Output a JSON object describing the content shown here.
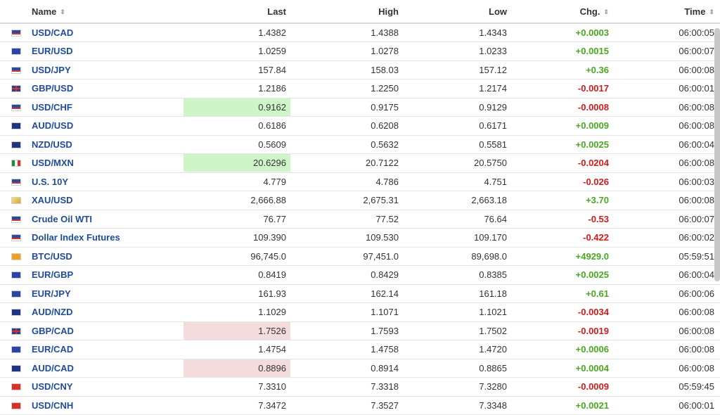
{
  "headers": {
    "name": "Name",
    "last": "Last",
    "high": "High",
    "low": "Low",
    "chg": "Chg.",
    "time": "Time"
  },
  "rows": [
    {
      "name": "USD/CAD",
      "last": "1.4382",
      "high": "1.4388",
      "low": "1.4343",
      "chg": "+0.0003",
      "time": "06:00:05",
      "flag": "us-flag-icon",
      "dir": "pos",
      "hl": ""
    },
    {
      "name": "EUR/USD",
      "last": "1.0259",
      "high": "1.0278",
      "low": "1.0233",
      "chg": "+0.0015",
      "time": "06:00:07",
      "flag": "eu-flag-icon",
      "dir": "pos",
      "hl": ""
    },
    {
      "name": "USD/JPY",
      "last": "157.84",
      "high": "158.03",
      "low": "157.12",
      "chg": "+0.36",
      "time": "06:00:08",
      "flag": "us-flag-icon",
      "dir": "pos",
      "hl": ""
    },
    {
      "name": "GBP/USD",
      "last": "1.2186",
      "high": "1.2250",
      "low": "1.2174",
      "chg": "-0.0017",
      "time": "06:00:01",
      "flag": "uk-flag-icon",
      "dir": "neg",
      "hl": ""
    },
    {
      "name": "USD/CHF",
      "last": "0.9162",
      "high": "0.9175",
      "low": "0.9129",
      "chg": "-0.0008",
      "time": "06:00:08",
      "flag": "us-flag-icon",
      "dir": "neg",
      "hl": "up"
    },
    {
      "name": "AUD/USD",
      "last": "0.6186",
      "high": "0.6208",
      "low": "0.6171",
      "chg": "+0.0009",
      "time": "06:00:08",
      "flag": "au-flag-icon",
      "dir": "pos",
      "hl": ""
    },
    {
      "name": "NZD/USD",
      "last": "0.5609",
      "high": "0.5632",
      "low": "0.5581",
      "chg": "+0.0025",
      "time": "06:00:04",
      "flag": "nz-flag-icon",
      "dir": "pos",
      "hl": ""
    },
    {
      "name": "USD/MXN",
      "last": "20.6296",
      "high": "20.7122",
      "low": "20.5750",
      "chg": "-0.0204",
      "time": "06:00:08",
      "flag": "mx-flag-icon",
      "dir": "neg",
      "hl": "up"
    },
    {
      "name": "U.S. 10Y",
      "last": "4.779",
      "high": "4.786",
      "low": "4.751",
      "chg": "-0.026",
      "time": "06:00:03",
      "flag": "us-flag-icon",
      "dir": "neg",
      "hl": ""
    },
    {
      "name": "XAU/USD",
      "last": "2,666.88",
      "high": "2,675.31",
      "low": "2,663.18",
      "chg": "+3.70",
      "time": "06:00:08",
      "flag": "gold-icon",
      "dir": "pos",
      "hl": ""
    },
    {
      "name": "Crude Oil WTI",
      "last": "76.77",
      "high": "77.52",
      "low": "76.64",
      "chg": "-0.53",
      "time": "06:00:07",
      "flag": "us-flag-icon",
      "dir": "neg",
      "hl": ""
    },
    {
      "name": "Dollar Index Futures",
      "last": "109.390",
      "high": "109.530",
      "low": "109.170",
      "chg": "-0.422",
      "time": "06:00:02",
      "flag": "us-flag-icon",
      "dir": "neg",
      "hl": ""
    },
    {
      "name": "BTC/USD",
      "last": "96,745.0",
      "high": "97,451.0",
      "low": "89,698.0",
      "chg": "+4929.0",
      "time": "05:59:51",
      "flag": "bitcoin-icon",
      "dir": "pos",
      "hl": ""
    },
    {
      "name": "EUR/GBP",
      "last": "0.8419",
      "high": "0.8429",
      "low": "0.8385",
      "chg": "+0.0025",
      "time": "06:00:04",
      "flag": "eu-flag-icon",
      "dir": "pos",
      "hl": ""
    },
    {
      "name": "EUR/JPY",
      "last": "161.93",
      "high": "162.14",
      "low": "161.18",
      "chg": "+0.61",
      "time": "06:00:06",
      "flag": "eu-flag-icon",
      "dir": "pos",
      "hl": ""
    },
    {
      "name": "AUD/NZD",
      "last": "1.1029",
      "high": "1.1071",
      "low": "1.1021",
      "chg": "-0.0034",
      "time": "06:00:08",
      "flag": "au-flag-icon",
      "dir": "neg",
      "hl": ""
    },
    {
      "name": "GBP/CAD",
      "last": "1.7526",
      "high": "1.7593",
      "low": "1.7502",
      "chg": "-0.0019",
      "time": "06:00:08",
      "flag": "uk-flag-icon",
      "dir": "neg",
      "hl": "down"
    },
    {
      "name": "EUR/CAD",
      "last": "1.4754",
      "high": "1.4758",
      "low": "1.4720",
      "chg": "+0.0006",
      "time": "06:00:08",
      "flag": "eu-flag-icon",
      "dir": "pos",
      "hl": ""
    },
    {
      "name": "AUD/CAD",
      "last": "0.8896",
      "high": "0.8914",
      "low": "0.8865",
      "chg": "+0.0004",
      "time": "06:00:08",
      "flag": "au-flag-icon",
      "dir": "pos",
      "hl": "down"
    },
    {
      "name": "USD/CNY",
      "last": "7.3310",
      "high": "7.3318",
      "low": "7.3280",
      "chg": "-0.0009",
      "time": "05:59:45",
      "flag": "cn-flag-icon",
      "dir": "neg",
      "hl": ""
    },
    {
      "name": "USD/CNH",
      "last": "7.3472",
      "high": "7.3527",
      "low": "7.3348",
      "chg": "+0.0021",
      "time": "06:00:01",
      "flag": "cn-flag-icon",
      "dir": "pos",
      "hl": ""
    }
  ],
  "colors": {
    "positive": "#4aa81f",
    "negative": "#d21b1b",
    "highlight_up": "#cdf5c8",
    "highlight_down": "#f5dcdc",
    "link": "#1f4b9a"
  }
}
